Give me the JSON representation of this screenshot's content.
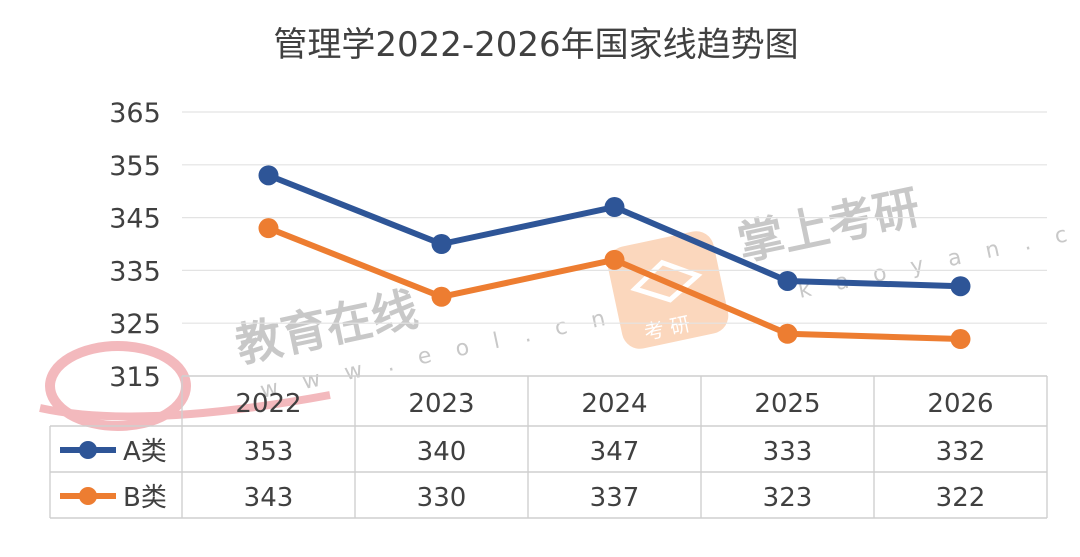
{
  "chart_data": {
    "type": "line",
    "title": "管理学2022-2026年国家线趋势图",
    "categories": [
      "2022",
      "2023",
      "2024",
      "2025",
      "2026"
    ],
    "series": [
      {
        "name": "A类",
        "values": [
          353,
          340,
          347,
          333,
          332
        ],
        "color": "#2e5597"
      },
      {
        "name": "B类",
        "values": [
          343,
          330,
          337,
          323,
          322
        ],
        "color": "#ed7d31"
      }
    ],
    "yticks": [
      315,
      325,
      335,
      345,
      355,
      365
    ],
    "ylim": [
      315,
      365
    ],
    "grid": true,
    "legend": "data-table"
  },
  "watermarks": {
    "eol_text": "教育在线",
    "eol_url": "w w w . e o l . c n",
    "kaoyan_text": "掌上考研",
    "kaoyan_url": "k a o y a n . c n",
    "kaoyan_logo_text": "考 研",
    "eol_logo": "eol-logo",
    "kaoyan_logo": "kaoyan-logo"
  }
}
